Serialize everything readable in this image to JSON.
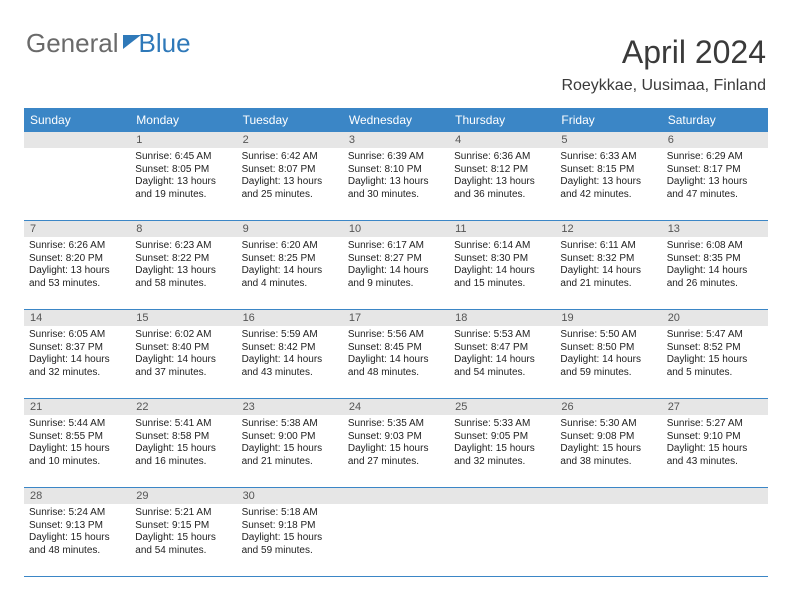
{
  "logo": {
    "text1": "General",
    "text2": "Blue"
  },
  "title": "April 2024",
  "location": "Roeykkae, Uusimaa, Finland",
  "colors": {
    "header_bg": "#3b86c6",
    "header_text": "#ffffff",
    "daynum_bg": "#e6e6e6",
    "daynum_text": "#555555",
    "rule": "#3b86c6",
    "body_text": "#222222",
    "page_bg": "#ffffff",
    "logo_gray": "#6a6a6a",
    "logo_blue": "#2f79b9"
  },
  "font": {
    "family": "Arial",
    "title_size": 32,
    "location_size": 16,
    "header_size": 12,
    "daynum_size": 11,
    "cell_size": 10
  },
  "day_headers": [
    "Sunday",
    "Monday",
    "Tuesday",
    "Wednesday",
    "Thursday",
    "Friday",
    "Saturday"
  ],
  "weeks": [
    {
      "nums": [
        "",
        "1",
        "2",
        "3",
        "4",
        "5",
        "6"
      ],
      "cells": [
        null,
        {
          "sunrise": "Sunrise: 6:45 AM",
          "sunset": "Sunset: 8:05 PM",
          "daylight": "Daylight: 13 hours and 19 minutes."
        },
        {
          "sunrise": "Sunrise: 6:42 AM",
          "sunset": "Sunset: 8:07 PM",
          "daylight": "Daylight: 13 hours and 25 minutes."
        },
        {
          "sunrise": "Sunrise: 6:39 AM",
          "sunset": "Sunset: 8:10 PM",
          "daylight": "Daylight: 13 hours and 30 minutes."
        },
        {
          "sunrise": "Sunrise: 6:36 AM",
          "sunset": "Sunset: 8:12 PM",
          "daylight": "Daylight: 13 hours and 36 minutes."
        },
        {
          "sunrise": "Sunrise: 6:33 AM",
          "sunset": "Sunset: 8:15 PM",
          "daylight": "Daylight: 13 hours and 42 minutes."
        },
        {
          "sunrise": "Sunrise: 6:29 AM",
          "sunset": "Sunset: 8:17 PM",
          "daylight": "Daylight: 13 hours and 47 minutes."
        }
      ]
    },
    {
      "nums": [
        "7",
        "8",
        "9",
        "10",
        "11",
        "12",
        "13"
      ],
      "cells": [
        {
          "sunrise": "Sunrise: 6:26 AM",
          "sunset": "Sunset: 8:20 PM",
          "daylight": "Daylight: 13 hours and 53 minutes."
        },
        {
          "sunrise": "Sunrise: 6:23 AM",
          "sunset": "Sunset: 8:22 PM",
          "daylight": "Daylight: 13 hours and 58 minutes."
        },
        {
          "sunrise": "Sunrise: 6:20 AM",
          "sunset": "Sunset: 8:25 PM",
          "daylight": "Daylight: 14 hours and 4 minutes."
        },
        {
          "sunrise": "Sunrise: 6:17 AM",
          "sunset": "Sunset: 8:27 PM",
          "daylight": "Daylight: 14 hours and 9 minutes."
        },
        {
          "sunrise": "Sunrise: 6:14 AM",
          "sunset": "Sunset: 8:30 PM",
          "daylight": "Daylight: 14 hours and 15 minutes."
        },
        {
          "sunrise": "Sunrise: 6:11 AM",
          "sunset": "Sunset: 8:32 PM",
          "daylight": "Daylight: 14 hours and 21 minutes."
        },
        {
          "sunrise": "Sunrise: 6:08 AM",
          "sunset": "Sunset: 8:35 PM",
          "daylight": "Daylight: 14 hours and 26 minutes."
        }
      ]
    },
    {
      "nums": [
        "14",
        "15",
        "16",
        "17",
        "18",
        "19",
        "20"
      ],
      "cells": [
        {
          "sunrise": "Sunrise: 6:05 AM",
          "sunset": "Sunset: 8:37 PM",
          "daylight": "Daylight: 14 hours and 32 minutes."
        },
        {
          "sunrise": "Sunrise: 6:02 AM",
          "sunset": "Sunset: 8:40 PM",
          "daylight": "Daylight: 14 hours and 37 minutes."
        },
        {
          "sunrise": "Sunrise: 5:59 AM",
          "sunset": "Sunset: 8:42 PM",
          "daylight": "Daylight: 14 hours and 43 minutes."
        },
        {
          "sunrise": "Sunrise: 5:56 AM",
          "sunset": "Sunset: 8:45 PM",
          "daylight": "Daylight: 14 hours and 48 minutes."
        },
        {
          "sunrise": "Sunrise: 5:53 AM",
          "sunset": "Sunset: 8:47 PM",
          "daylight": "Daylight: 14 hours and 54 minutes."
        },
        {
          "sunrise": "Sunrise: 5:50 AM",
          "sunset": "Sunset: 8:50 PM",
          "daylight": "Daylight: 14 hours and 59 minutes."
        },
        {
          "sunrise": "Sunrise: 5:47 AM",
          "sunset": "Sunset: 8:52 PM",
          "daylight": "Daylight: 15 hours and 5 minutes."
        }
      ]
    },
    {
      "nums": [
        "21",
        "22",
        "23",
        "24",
        "25",
        "26",
        "27"
      ],
      "cells": [
        {
          "sunrise": "Sunrise: 5:44 AM",
          "sunset": "Sunset: 8:55 PM",
          "daylight": "Daylight: 15 hours and 10 minutes."
        },
        {
          "sunrise": "Sunrise: 5:41 AM",
          "sunset": "Sunset: 8:58 PM",
          "daylight": "Daylight: 15 hours and 16 minutes."
        },
        {
          "sunrise": "Sunrise: 5:38 AM",
          "sunset": "Sunset: 9:00 PM",
          "daylight": "Daylight: 15 hours and 21 minutes."
        },
        {
          "sunrise": "Sunrise: 5:35 AM",
          "sunset": "Sunset: 9:03 PM",
          "daylight": "Daylight: 15 hours and 27 minutes."
        },
        {
          "sunrise": "Sunrise: 5:33 AM",
          "sunset": "Sunset: 9:05 PM",
          "daylight": "Daylight: 15 hours and 32 minutes."
        },
        {
          "sunrise": "Sunrise: 5:30 AM",
          "sunset": "Sunset: 9:08 PM",
          "daylight": "Daylight: 15 hours and 38 minutes."
        },
        {
          "sunrise": "Sunrise: 5:27 AM",
          "sunset": "Sunset: 9:10 PM",
          "daylight": "Daylight: 15 hours and 43 minutes."
        }
      ]
    },
    {
      "nums": [
        "28",
        "29",
        "30",
        "",
        "",
        "",
        ""
      ],
      "cells": [
        {
          "sunrise": "Sunrise: 5:24 AM",
          "sunset": "Sunset: 9:13 PM",
          "daylight": "Daylight: 15 hours and 48 minutes."
        },
        {
          "sunrise": "Sunrise: 5:21 AM",
          "sunset": "Sunset: 9:15 PM",
          "daylight": "Daylight: 15 hours and 54 minutes."
        },
        {
          "sunrise": "Sunrise: 5:18 AM",
          "sunset": "Sunset: 9:18 PM",
          "daylight": "Daylight: 15 hours and 59 minutes."
        },
        null,
        null,
        null,
        null
      ]
    }
  ]
}
